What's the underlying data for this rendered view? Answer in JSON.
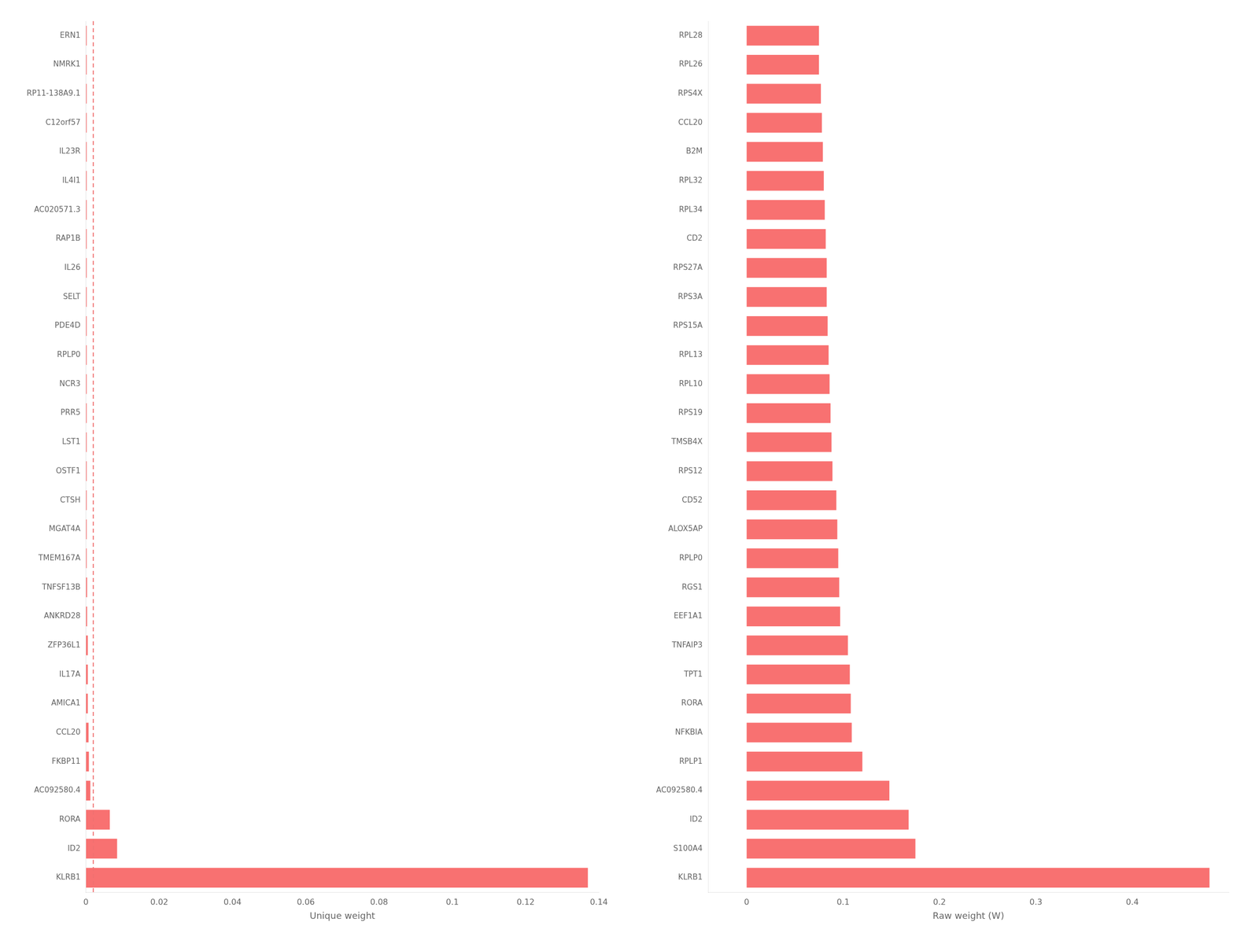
{
  "chart_data": [
    {
      "type": "bar",
      "orientation": "horizontal",
      "categories": [
        "ERN1",
        "NMRK1",
        "RP11-138A9.1",
        "C12orf57",
        "IL23R",
        "IL4I1",
        "AC020571.3",
        "RAP1B",
        "IL26",
        "SELT",
        "PDE4D",
        "RPLP0",
        "NCR3",
        "PRR5",
        "LST1",
        "OSTF1",
        "CTSH",
        "MGAT4A",
        "TMEM167A",
        "TNFSF13B",
        "ANKRD28",
        "ZFP36L1",
        "IL17A",
        "AMICA1",
        "CCL20",
        "FKBP11",
        "AC092580.4",
        "RORA",
        "ID2",
        "KLRB1"
      ],
      "values": [
        0.0002,
        0.0002,
        0.0002,
        0.0002,
        0.0002,
        0.0002,
        0.0002,
        0.0002,
        0.0002,
        0.0002,
        0.0002,
        0.0002,
        0.0002,
        0.0002,
        0.0002,
        0.0002,
        0.0002,
        0.0002,
        0.0002,
        0.0003,
        0.0003,
        0.0005,
        0.0005,
        0.0005,
        0.0007,
        0.0008,
        0.0012,
        0.0065,
        0.0085,
        0.137
      ],
      "color": "#F87171",
      "xlim": [
        0,
        0.14
      ],
      "xticks": [
        0,
        0.02,
        0.04,
        0.06,
        0.08,
        0.1,
        0.12,
        0.14
      ],
      "xlabel": "Unique weight",
      "grid": false,
      "vline": {
        "x": 0.002,
        "color": "#F07070",
        "line_style": "dashed"
      }
    },
    {
      "type": "bar",
      "orientation": "horizontal",
      "categories": [
        "RPL28",
        "RPL26",
        "RPS4X",
        "CCL20",
        "B2M",
        "RPL32",
        "RPL34",
        "CD2",
        "RPS27A",
        "RPS3A",
        "RPS15A",
        "RPL13",
        "RPL10",
        "RPS19",
        "TMSB4X",
        "RPS12",
        "CD52",
        "ALOX5AP",
        "RPLP0",
        "RGS1",
        "EEF1A1",
        "TNFAIP3",
        "TPT1",
        "RORA",
        "NFKBIA",
        "RPLP1",
        "AC092580.4",
        "ID2",
        "S100A4",
        "KLRB1"
      ],
      "values": [
        0.075,
        0.075,
        0.077,
        0.078,
        0.079,
        0.08,
        0.081,
        0.082,
        0.083,
        0.083,
        0.084,
        0.085,
        0.086,
        0.087,
        0.088,
        0.089,
        0.093,
        0.094,
        0.095,
        0.096,
        0.097,
        0.105,
        0.107,
        0.108,
        0.109,
        0.12,
        0.148,
        0.168,
        0.175,
        0.48
      ],
      "color": "#F87171",
      "xlim": [
        -0.04,
        0.5
      ],
      "xticks": [
        0,
        0.1,
        0.2,
        0.3,
        0.4
      ],
      "xlabel": "Raw weight (W)",
      "grid": false
    }
  ]
}
